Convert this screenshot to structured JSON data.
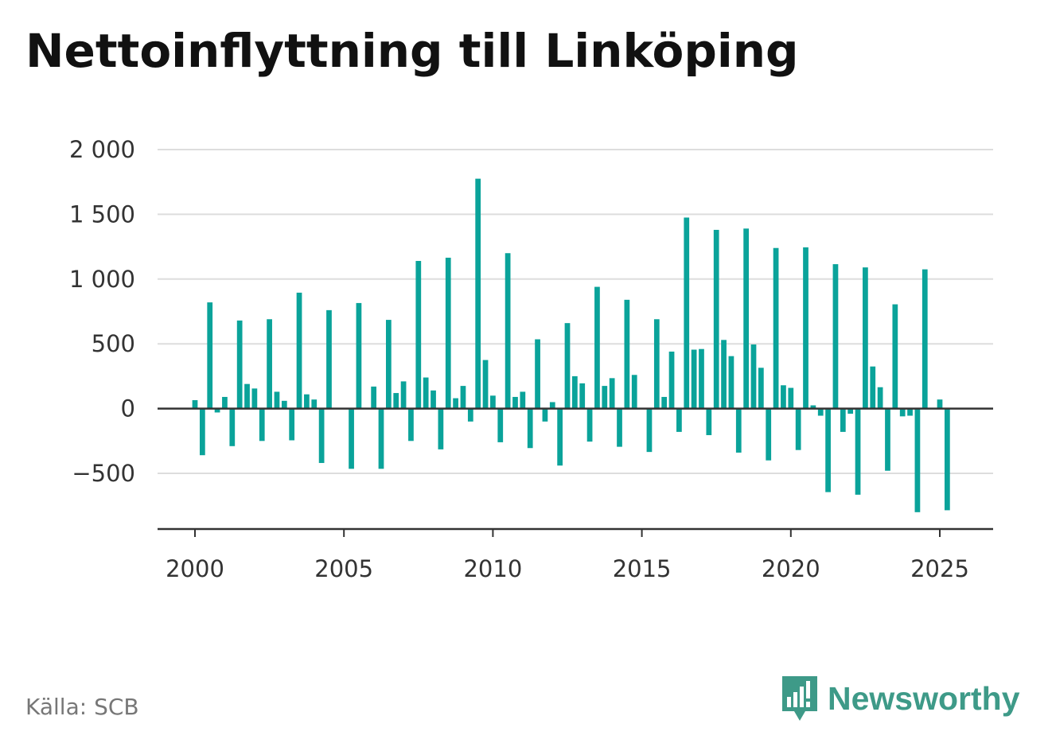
{
  "title": "Nettoinflyttning till Linköping",
  "source": "Källa: SCB",
  "brand": {
    "name": "Newsworthy",
    "logo_icon": "bar-chart-chat-bubble-icon"
  },
  "colors": {
    "bar": "#0aa39a",
    "grid": "#dddddd",
    "axis": "#333333",
    "brand": "#3e9a88"
  },
  "chart_data": {
    "type": "bar",
    "title": "Nettoinflyttning till Linköping",
    "xlabel": "",
    "ylabel": "",
    "frequency": "quarterly",
    "ylim": [
      -930,
      2000
    ],
    "yticks": [
      2000,
      1500,
      1000,
      500,
      0,
      -500
    ],
    "ytick_labels": [
      "2 000",
      "1 500",
      "1 000",
      "500",
      "0",
      "−500"
    ],
    "xticks": [
      2000,
      2005,
      2010,
      2015,
      2020,
      2025
    ],
    "xtick_labels": [
      "2000",
      "2005",
      "2010",
      "2015",
      "2020",
      "2025"
    ],
    "grid": true,
    "legend": "none",
    "x": [
      "2000 Q1",
      "2000 Q2",
      "2000 Q3",
      "2000 Q4",
      "2001 Q1",
      "2001 Q2",
      "2001 Q3",
      "2001 Q4",
      "2002 Q1",
      "2002 Q2",
      "2002 Q3",
      "2002 Q4",
      "2003 Q1",
      "2003 Q2",
      "2003 Q3",
      "2003 Q4",
      "2004 Q1",
      "2004 Q2",
      "2004 Q3",
      "2004 Q4",
      "2005 Q1",
      "2005 Q2",
      "2005 Q3",
      "2005 Q4",
      "2006 Q1",
      "2006 Q2",
      "2006 Q3",
      "2006 Q4",
      "2007 Q1",
      "2007 Q2",
      "2007 Q3",
      "2007 Q4",
      "2008 Q1",
      "2008 Q2",
      "2008 Q3",
      "2008 Q4",
      "2009 Q1",
      "2009 Q2",
      "2009 Q3",
      "2009 Q4",
      "2010 Q1",
      "2010 Q2",
      "2010 Q3",
      "2010 Q4",
      "2011 Q1",
      "2011 Q2",
      "2011 Q3",
      "2011 Q4",
      "2012 Q1",
      "2012 Q2",
      "2012 Q3",
      "2012 Q4",
      "2013 Q1",
      "2013 Q2",
      "2013 Q3",
      "2013 Q4",
      "2014 Q1",
      "2014 Q2",
      "2014 Q3",
      "2014 Q4",
      "2015 Q1",
      "2015 Q2",
      "2015 Q3",
      "2015 Q4",
      "2016 Q1",
      "2016 Q2",
      "2016 Q3",
      "2016 Q4",
      "2017 Q1",
      "2017 Q2",
      "2017 Q3",
      "2017 Q4",
      "2018 Q1",
      "2018 Q2",
      "2018 Q3",
      "2018 Q4",
      "2019 Q1",
      "2019 Q2",
      "2019 Q3",
      "2019 Q4",
      "2020 Q1",
      "2020 Q2",
      "2020 Q3",
      "2020 Q4",
      "2021 Q1",
      "2021 Q2",
      "2021 Q3",
      "2021 Q4",
      "2022 Q1",
      "2022 Q2",
      "2022 Q3",
      "2022 Q4",
      "2023 Q1",
      "2023 Q2",
      "2023 Q3",
      "2023 Q4",
      "2024 Q1",
      "2024 Q2",
      "2024 Q3",
      "2024 Q4",
      "2025 Q1",
      "2025 Q2"
    ],
    "values": [
      65,
      -360,
      820,
      -30,
      90,
      -290,
      680,
      190,
      155,
      -250,
      690,
      130,
      60,
      -245,
      895,
      110,
      70,
      -420,
      760,
      0,
      0,
      -465,
      815,
      0,
      170,
      -465,
      685,
      120,
      210,
      -250,
      1140,
      240,
      140,
      -315,
      1165,
      80,
      175,
      -100,
      1775,
      375,
      100,
      -260,
      1200,
      90,
      130,
      -305,
      535,
      -100,
      50,
      -440,
      660,
      250,
      195,
      -255,
      940,
      175,
      235,
      -295,
      840,
      260,
      0,
      -335,
      690,
      90,
      440,
      -180,
      1475,
      455,
      460,
      -205,
      1380,
      530,
      405,
      -340,
      1390,
      495,
      315,
      -400,
      1240,
      180,
      160,
      -320,
      1245,
      25,
      -55,
      -645,
      1115,
      -180,
      -40,
      -665,
      1090,
      325,
      165,
      -480,
      805,
      -60,
      -55,
      -800,
      1075,
      0,
      70,
      -785
    ]
  }
}
